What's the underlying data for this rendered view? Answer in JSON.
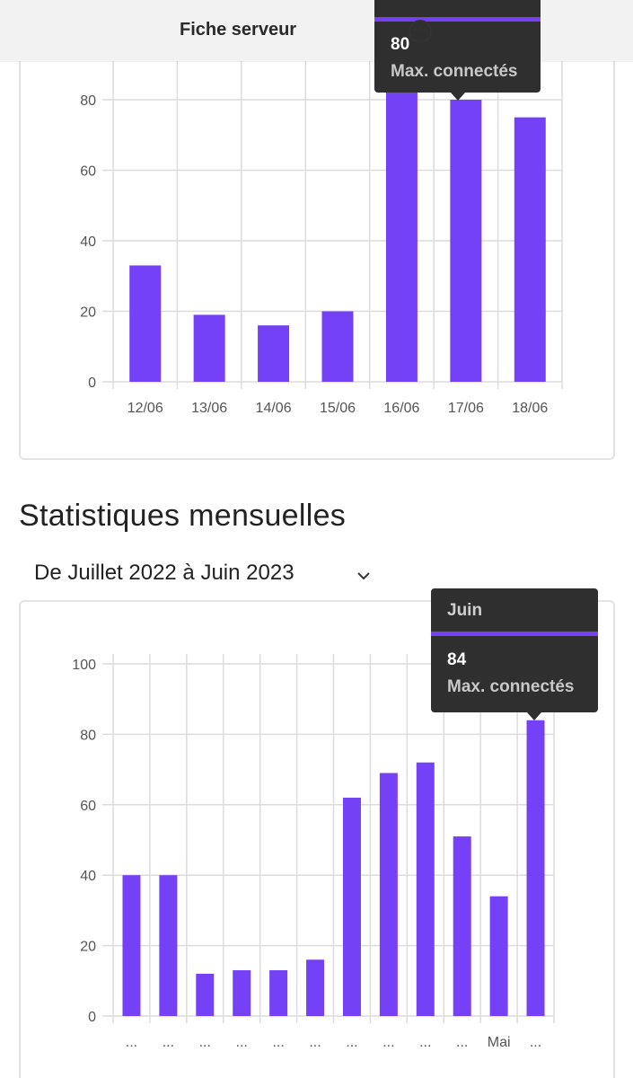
{
  "header": {
    "title": "Fiche serveur",
    "more_icon": "more-horizontal-icon"
  },
  "colors": {
    "accent": "#7541f6",
    "grid": "#dcdcdc",
    "tooltip_bg": "#2f2f2f",
    "axis_text": "#555555"
  },
  "weekly": {
    "tooltip": {
      "value": "80",
      "label": "Max. connectés"
    }
  },
  "monthly": {
    "section_title": "Statistiques mensuelles",
    "range_label": "De Juillet 2022 à Juin 2023",
    "range_icon": "chevron-down-icon",
    "tooltip": {
      "title": "Juin",
      "value": "84",
      "label": "Max. connectés"
    }
  },
  "chart_data": [
    {
      "type": "bar",
      "categories": [
        "12/06",
        "13/06",
        "14/06",
        "15/06",
        "16/06",
        "17/06",
        "18/06"
      ],
      "series": [
        {
          "name": "Max. connectés",
          "values": [
            33,
            19,
            16,
            20,
            84,
            80,
            75
          ]
        }
      ],
      "yticks": [
        0,
        20,
        40,
        60,
        80
      ],
      "ylim": [
        0,
        100
      ],
      "grid": true,
      "title": "",
      "xlabel": "",
      "ylabel": ""
    },
    {
      "type": "bar",
      "categories": [
        "...",
        "...",
        "...",
        "...",
        "...",
        "...",
        "...",
        "...",
        "...",
        "...",
        "Mai",
        "..."
      ],
      "series": [
        {
          "name": "Max. connectés",
          "values": [
            40,
            40,
            12,
            13,
            13,
            16,
            62,
            69,
            72,
            51,
            34,
            84
          ]
        }
      ],
      "yticks": [
        0,
        20,
        40,
        60,
        80,
        100
      ],
      "ylim": [
        0,
        100
      ],
      "grid": true,
      "title": "",
      "xlabel": "",
      "ylabel": ""
    }
  ]
}
